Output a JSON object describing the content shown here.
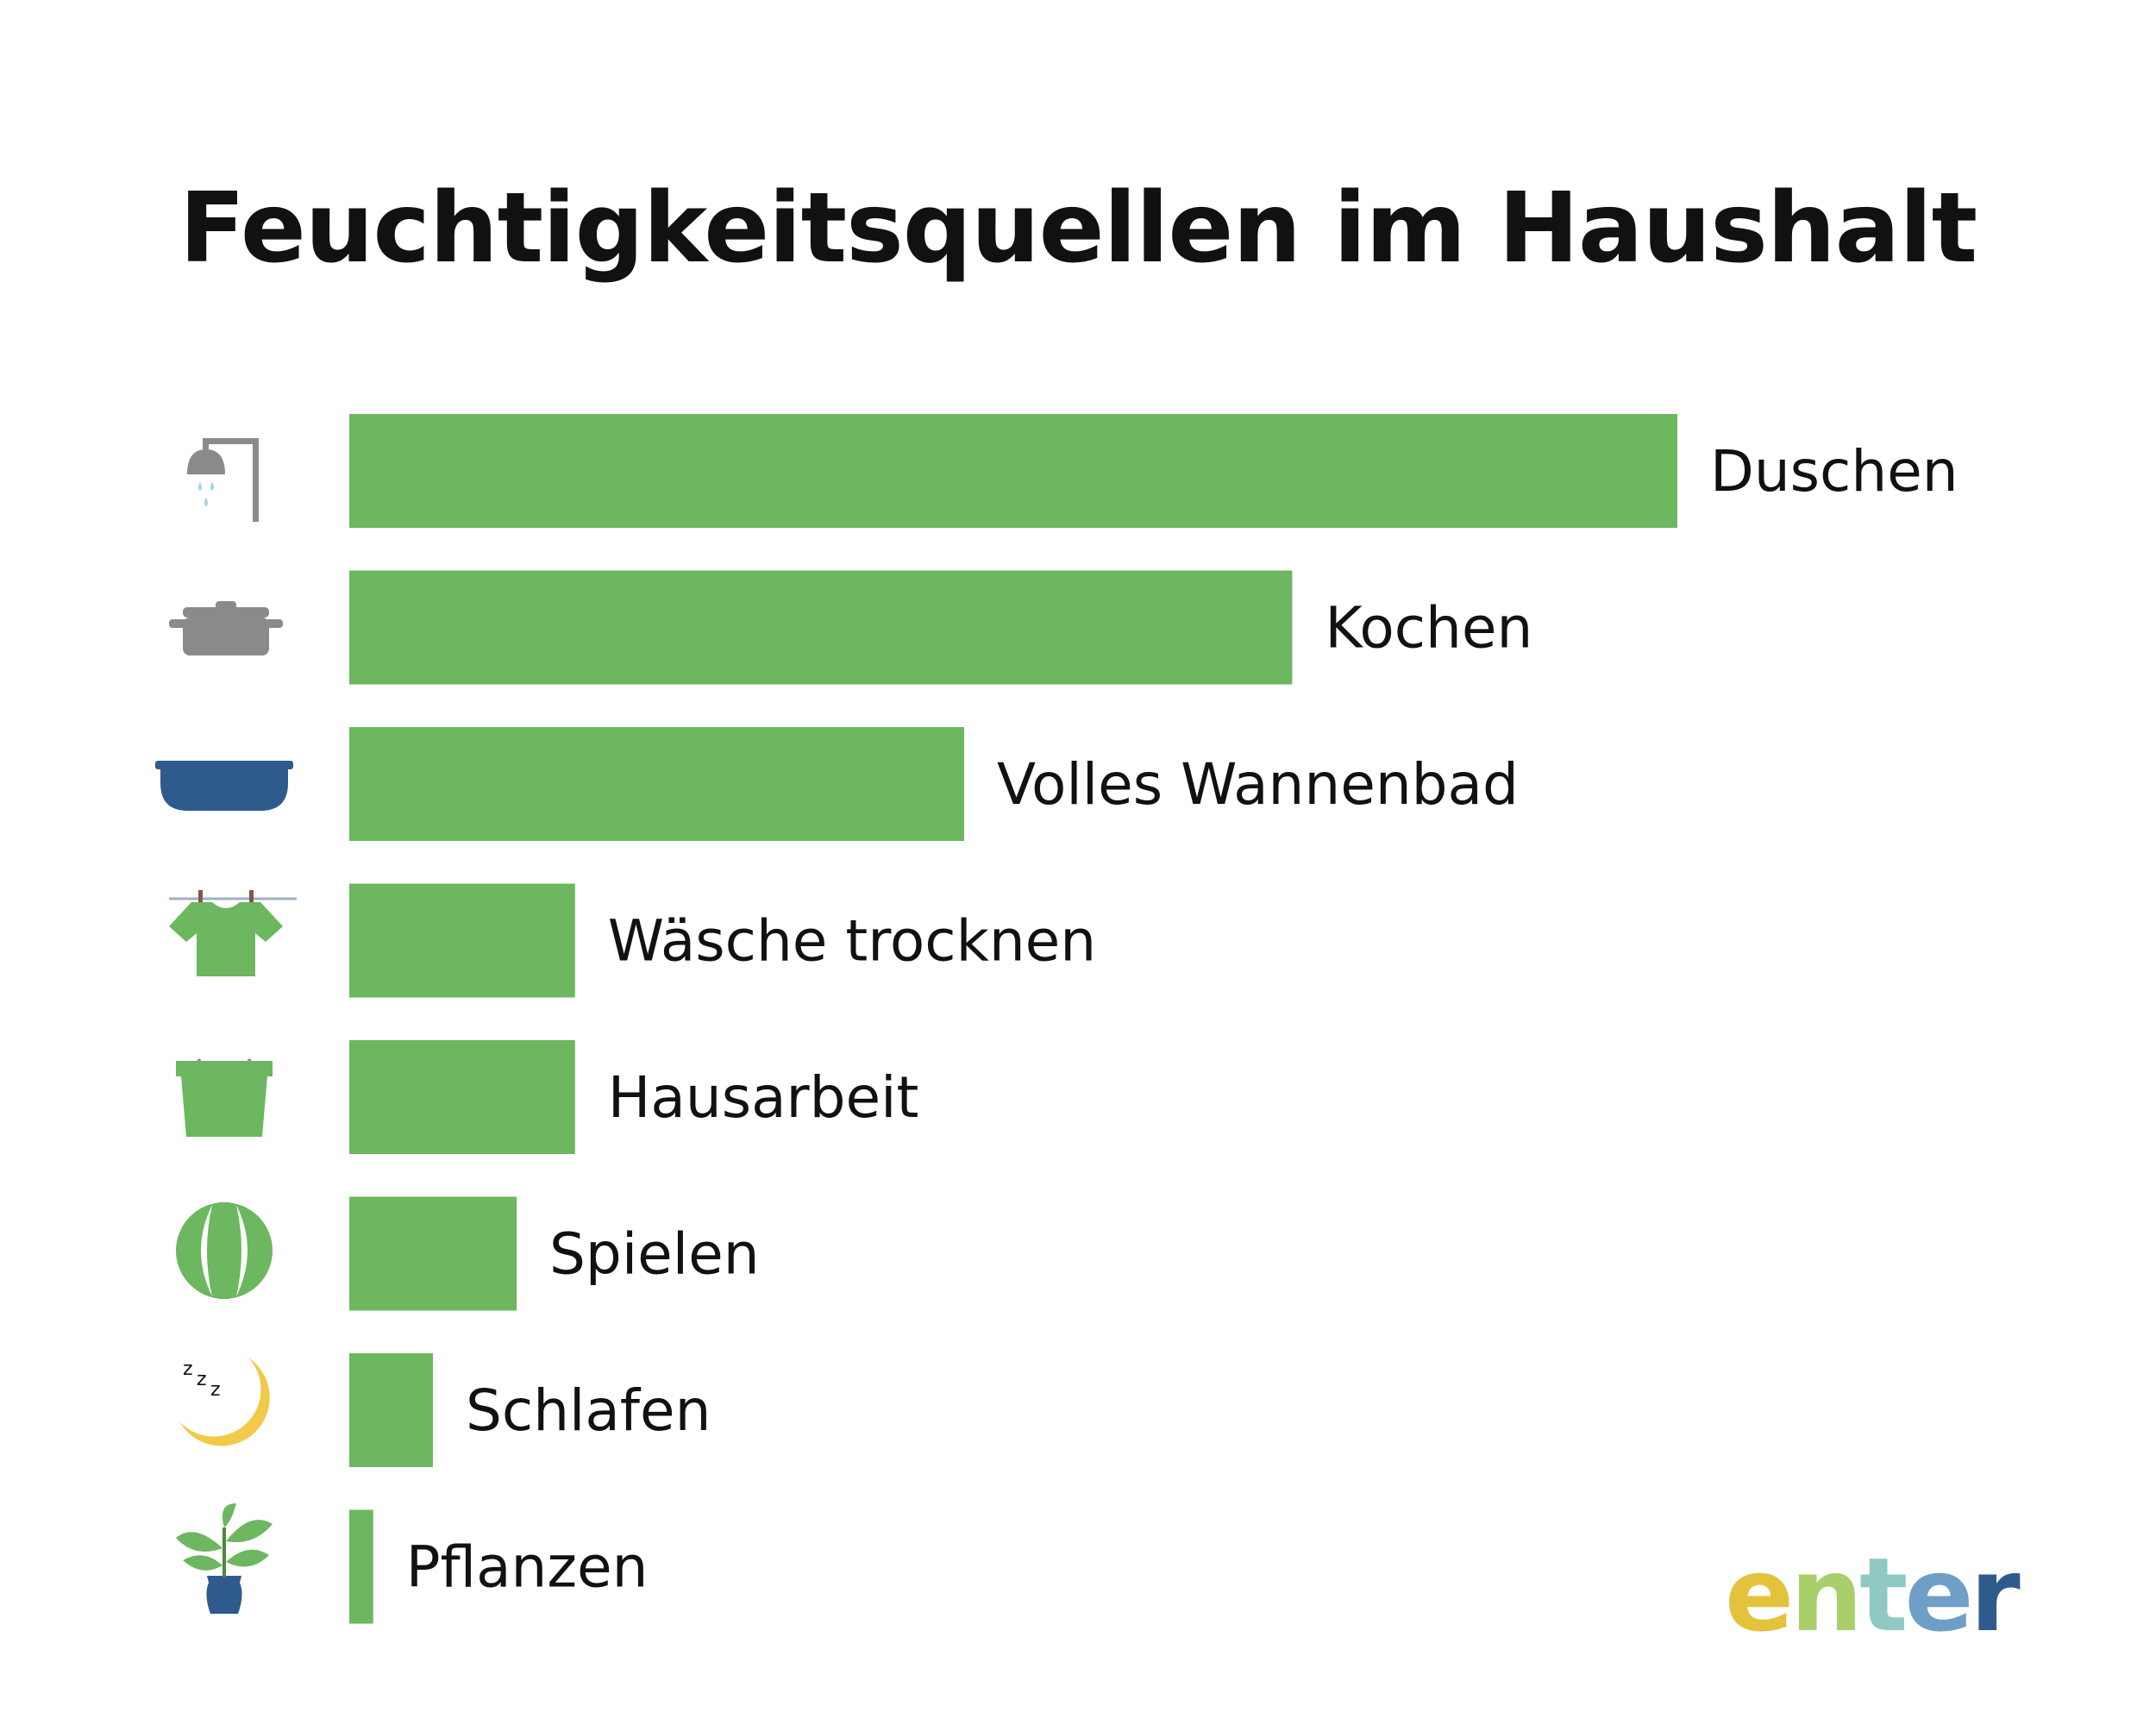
{
  "colors": {
    "bar": "#6cb75f",
    "label": "#111111",
    "icon_gray": "#8a8a8a",
    "icon_blue": "#2f5b8c",
    "icon_green": "#6cb75f",
    "icon_yellow": "#f3c94a",
    "water": "#9fd3ea"
  },
  "chart_data": {
    "type": "bar",
    "orientation": "horizontal",
    "title": "Feuchtigkeitsquellen im Haushalt",
    "categories": [
      "Duschen",
      "Kochen",
      "Volles Wannenbad",
      "Wäsche trocknen",
      "Hausarbeit",
      "Spielen",
      "Schlafen",
      "Pflanzen"
    ],
    "values": [
      100,
      71,
      46.3,
      17,
      17,
      12.6,
      6.3,
      1.8
    ],
    "icons": [
      "shower-icon",
      "pot-icon",
      "bathtub-icon",
      "laundry-shirt-icon",
      "bucket-icon",
      "ball-icon",
      "sleeping-moon-icon",
      "plant-icon"
    ],
    "xlim": [
      0,
      100
    ],
    "axis_visible": false,
    "grid": false,
    "legend": "none"
  },
  "logo": {
    "text": "enter",
    "letter_colors": [
      "#e3c23c",
      "#a8cf6a",
      "#8fc9c2",
      "#6f9fc6",
      "#2f5b8c"
    ]
  }
}
